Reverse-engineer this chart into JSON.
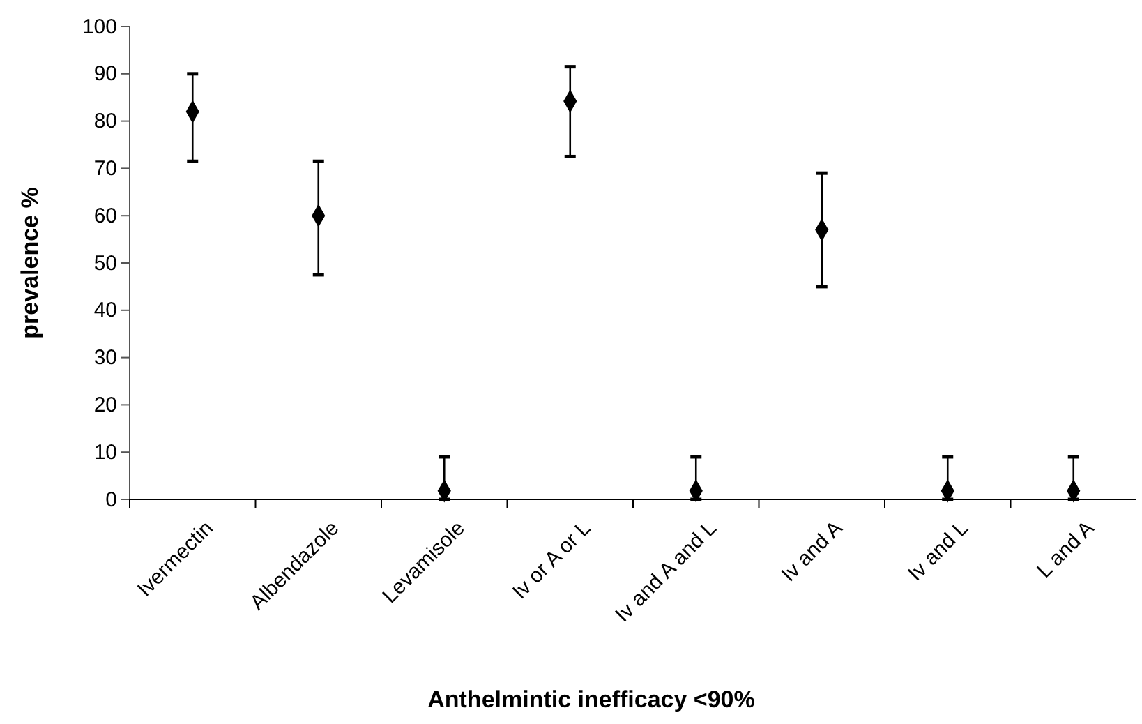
{
  "chart_data": {
    "type": "scatter",
    "xlabel": "Anthelmintic inefficacy <90%",
    "ylabel": "prevalence %",
    "categories": [
      "Ivermectin",
      "Albendazole",
      "Levamisole",
      "Iv or A or L",
      "Iv and A and L",
      "Iv and A",
      "Iv and L",
      "L and A"
    ],
    "values": [
      82,
      60,
      1.8,
      84.2,
      1.8,
      57,
      1.8,
      1.8
    ],
    "errors": [
      [
        71.5,
        90
      ],
      [
        47.5,
        71.5
      ],
      [
        0,
        9
      ],
      [
        72.5,
        91.5
      ],
      [
        0,
        9
      ],
      [
        45,
        69
      ],
      [
        0,
        9
      ],
      [
        0,
        9
      ]
    ],
    "color": "#000000",
    "marker": "diamond",
    "ylim": [
      0,
      100
    ],
    "yticks": [
      0,
      10,
      20,
      30,
      40,
      50,
      60,
      70,
      80,
      90,
      100
    ],
    "grid": false
  }
}
